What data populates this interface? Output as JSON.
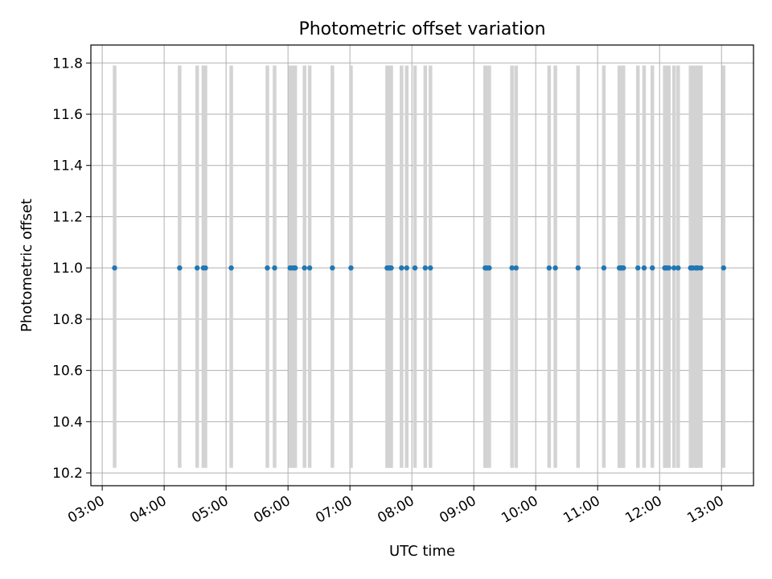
{
  "chart_data": {
    "type": "scatter",
    "title": "Photometric offset variation",
    "xlabel": "UTC time",
    "ylabel": "Photometric offset",
    "xlim": [
      "02:49",
      "13:31"
    ],
    "ylim": [
      10.15,
      11.87
    ],
    "grid": true,
    "x_ticks": [
      "03:00",
      "04:00",
      "05:00",
      "06:00",
      "07:00",
      "08:00",
      "09:00",
      "10:00",
      "11:00",
      "12:00",
      "13:00"
    ],
    "y_ticks": [
      10.2,
      10.4,
      10.6,
      10.8,
      11.0,
      11.2,
      11.4,
      11.6,
      11.8
    ],
    "error_bar_range": [
      10.22,
      11.79
    ],
    "error_bar_color": "#d3d3d3",
    "point_color": "#1f77b4",
    "x": [
      "03:12",
      "04:15",
      "04:32",
      "04:38",
      "04:40",
      "05:05",
      "05:40",
      "05:47",
      "06:02",
      "06:04",
      "06:06",
      "06:07",
      "06:16",
      "06:21",
      "06:43",
      "07:01",
      "07:36",
      "07:37",
      "07:38",
      "07:39",
      "07:40",
      "07:50",
      "07:55",
      "08:03",
      "08:13",
      "08:18",
      "09:11",
      "09:12",
      "09:13",
      "09:15",
      "09:37",
      "09:41",
      "10:13",
      "10:19",
      "10:41",
      "11:06",
      "11:21",
      "11:22",
      "11:23",
      "11:24",
      "11:25",
      "11:39",
      "11:45",
      "11:53",
      "12:05",
      "12:06",
      "12:07",
      "12:09",
      "12:14",
      "12:18",
      "12:30",
      "12:31",
      "12:32",
      "12:35",
      "12:36",
      "12:37",
      "12:40",
      "13:02"
    ],
    "y": [
      11.0,
      11.0,
      11.0,
      11.0,
      11.0,
      11.0,
      11.0,
      11.0,
      11.0,
      11.0,
      11.0,
      11.0,
      11.0,
      11.0,
      11.0,
      11.0,
      11.0,
      11.0,
      11.0,
      11.0,
      11.0,
      11.0,
      11.0,
      11.0,
      11.0,
      11.0,
      11.0,
      11.0,
      11.0,
      11.0,
      11.0,
      11.0,
      11.0,
      11.0,
      11.0,
      11.0,
      11.0,
      11.0,
      11.0,
      11.0,
      11.0,
      11.0,
      11.0,
      11.0,
      11.0,
      11.0,
      11.0,
      11.0,
      11.0,
      11.0,
      11.0,
      11.0,
      11.0,
      11.0,
      11.0,
      11.0,
      11.0,
      11.0
    ]
  }
}
